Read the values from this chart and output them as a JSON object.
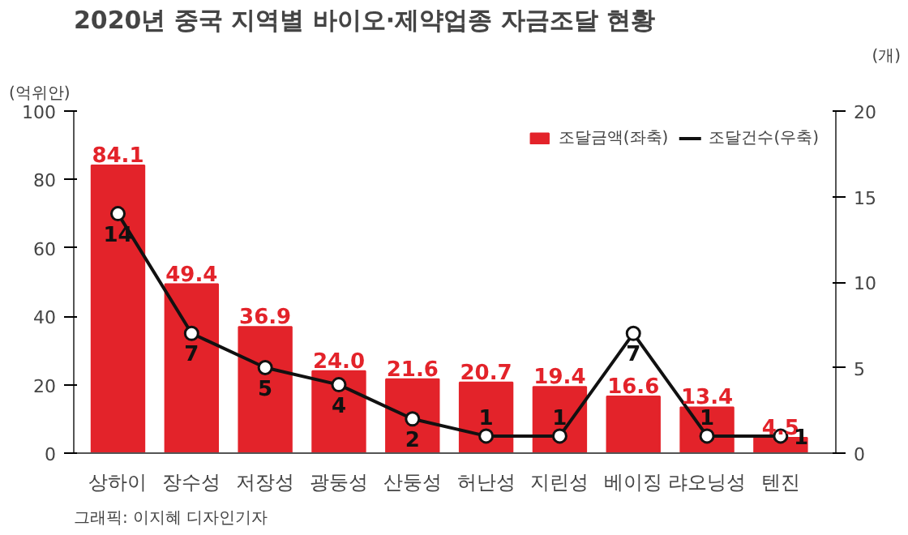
{
  "chart_data": {
    "type": "bar",
    "title": "2020년 중국 지역별 바이오·제약업종 자금조달 현황",
    "ylabel": "(억위안)",
    "y2label": "(개)",
    "categories": [
      "상하이",
      "장수성",
      "저장성",
      "광둥성",
      "산둥성",
      "허난성",
      "지린성",
      "베이징",
      "랴오닝성",
      "텐진"
    ],
    "series": [
      {
        "name": "조달금액(좌축)",
        "color": "#e3232a",
        "values": [
          84.1,
          49.4,
          36.9,
          24.0,
          21.6,
          20.7,
          19.4,
          16.6,
          13.4,
          4.5
        ],
        "value_labels": [
          "84.1",
          "49.4",
          "36.9",
          "24.0",
          "21.6",
          "20.7",
          "19.4",
          "16.6",
          "13.4",
          "4.5"
        ]
      },
      {
        "name": "조달건수(우축)",
        "type": "line",
        "axis": "y2",
        "color": "#111111",
        "marker": "circle",
        "values": [
          14,
          7,
          5,
          4,
          2,
          1,
          1,
          7,
          1,
          1
        ],
        "value_labels": [
          "14",
          "7",
          "5",
          "4",
          "2",
          "1",
          "1",
          "7",
          "1",
          "1"
        ]
      }
    ],
    "ylim": [
      0,
      100
    ],
    "yticks": [
      0,
      20,
      40,
      60,
      80,
      100
    ],
    "y2lim": [
      0,
      20
    ],
    "y2ticks": [
      0,
      5,
      10,
      15,
      20
    ],
    "grid": false,
    "legend": "top right",
    "annotations": [
      "그래픽: 이지혜 디자인기자"
    ]
  }
}
